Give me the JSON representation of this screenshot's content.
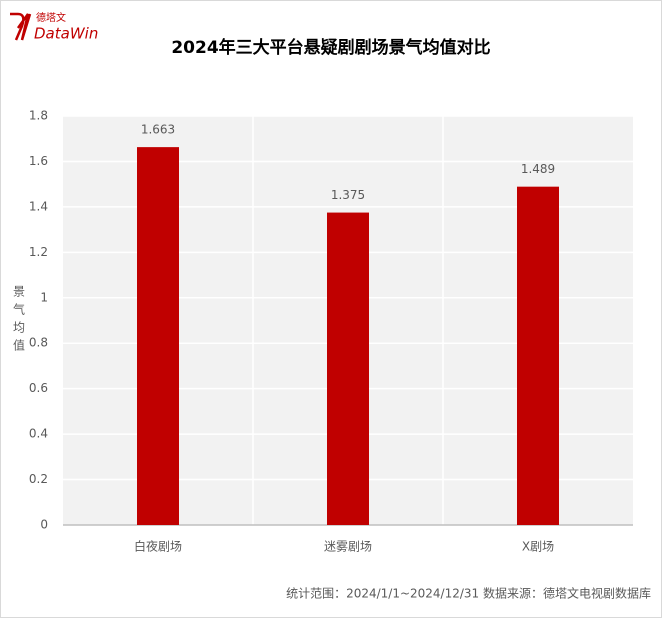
{
  "logo": {
    "name": "DataWin",
    "cn": "德塔文"
  },
  "chart_data": {
    "type": "bar",
    "title": "2024年三大平台悬疑剧剧场景气均值对比",
    "y_label": "景气均值",
    "categories": [
      "白夜剧场",
      "迷雾剧场",
      "X剧场"
    ],
    "values": [
      1.663,
      1.375,
      1.489
    ],
    "color": "#c00000",
    "ylim": [
      0,
      1.8
    ],
    "yticks": [
      0,
      0.2,
      0.4,
      0.6,
      0.8,
      1,
      1.2,
      1.4,
      1.6,
      1.8
    ],
    "grid": true,
    "note": "统计范围：2024/1/1~2024/12/31    数据来源：德塔文电视剧数据库"
  }
}
